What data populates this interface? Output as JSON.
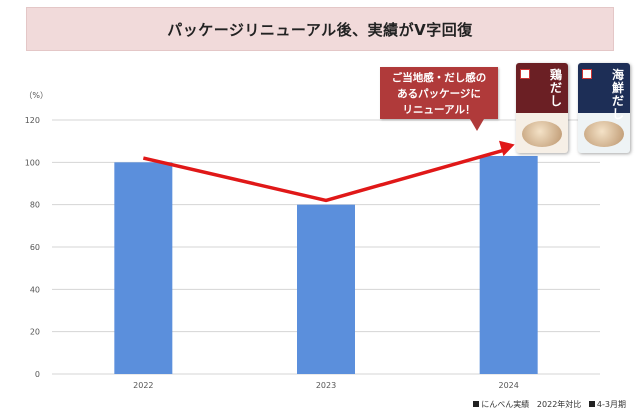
{
  "title": "パッケージリニューアル後、実績がV字回復",
  "callout": {
    "lines": [
      "ご当地感・だし感の",
      "あるパッケージに",
      "リニューアル！"
    ]
  },
  "packages": [
    {
      "name": "鶏だし"
    },
    {
      "name": "海鮮だし"
    }
  ],
  "legend": {
    "items": [
      "にんべん実績",
      "2022年対比",
      "4-3月期"
    ]
  },
  "colors": {
    "bar": "#5b8fdc",
    "arrow": "#e01818",
    "grid": "#d4d4d4",
    "banner": "#f1dada",
    "callout": "#b03a3a"
  },
  "chart_data": {
    "type": "bar",
    "unit_label": "（%）",
    "categories": [
      "2022",
      "2023",
      "2024"
    ],
    "values": [
      100,
      80,
      103
    ],
    "ylim": [
      0,
      120
    ],
    "yticks": [
      0,
      20,
      40,
      60,
      80,
      100,
      120
    ],
    "grid": true,
    "trend_arrow": {
      "points": [
        102,
        82,
        107
      ]
    }
  }
}
